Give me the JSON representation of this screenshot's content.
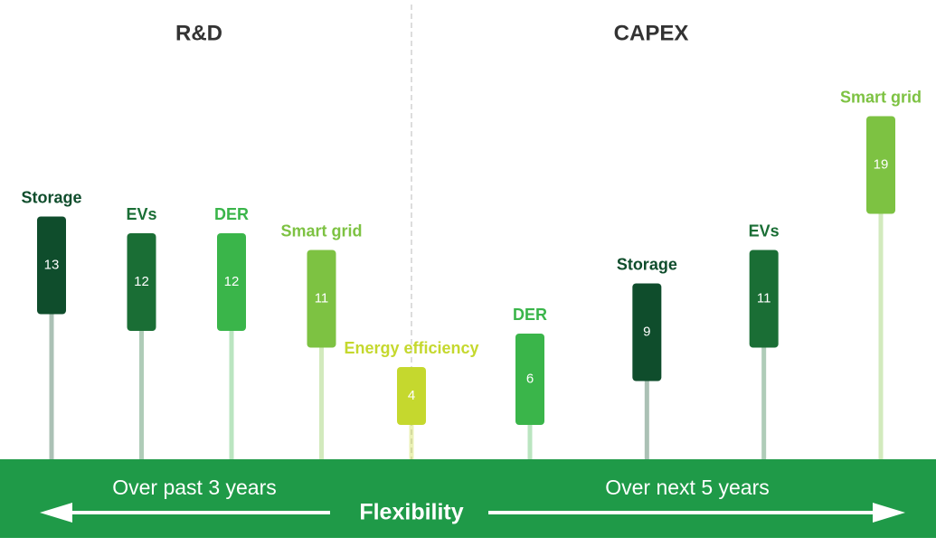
{
  "chart_data": {
    "type": "lollipop",
    "center_label": "Flexibility",
    "groups": [
      {
        "title": "R&D",
        "period": "Over past 3 years",
        "items": [
          {
            "name": "Storage",
            "value": 13,
            "color": "#0f4d2c"
          },
          {
            "name": "EVs",
            "value": 12,
            "color": "#1a6e35"
          },
          {
            "name": "DER",
            "value": 12,
            "color": "#3ab54a"
          },
          {
            "name": "Smart grid",
            "value": 11,
            "color": "#7dc242"
          },
          {
            "name": "Energy efficiency",
            "value": 4,
            "color": "#c5d82e"
          }
        ]
      },
      {
        "title": "CAPEX",
        "period": "Over next 5 years",
        "items": [
          {
            "name": "DER",
            "value": 6,
            "color": "#3ab54a"
          },
          {
            "name": "Storage",
            "value": 9,
            "color": "#0f4d2c"
          },
          {
            "name": "EVs",
            "value": 11,
            "color": "#1a6e35"
          },
          {
            "name": "Smart grid",
            "value": 19,
            "color": "#7dc242"
          }
        ]
      }
    ]
  }
}
